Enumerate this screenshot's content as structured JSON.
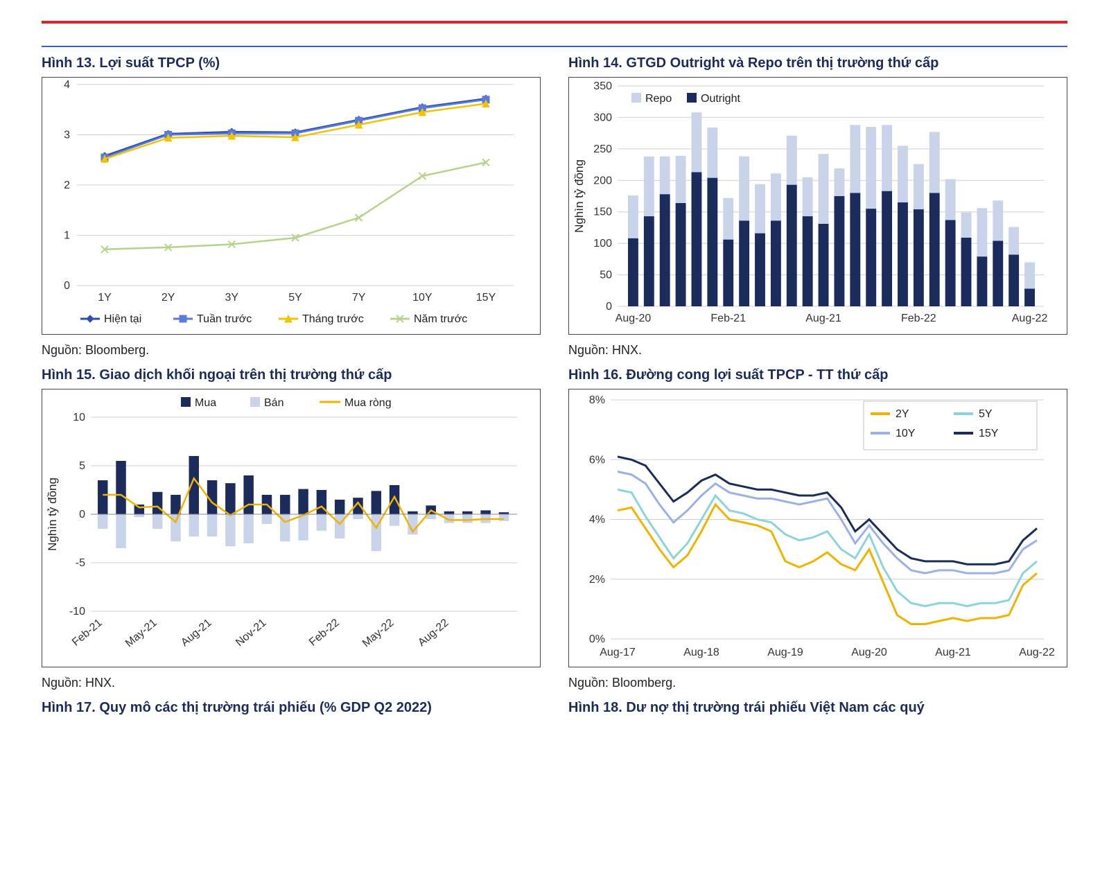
{
  "top_rules": {
    "red": "#d9252d",
    "blue": "#3a5fcc"
  },
  "fig13": {
    "title": "Hình 13. Lợi suất TPCP (%)",
    "source": "Nguồn: Bloomberg.",
    "type": "line",
    "categories": [
      "1Y",
      "2Y",
      "3Y",
      "5Y",
      "7Y",
      "10Y",
      "15Y"
    ],
    "series": [
      {
        "name": "Hiện tại",
        "color": "#2a4fb0",
        "marker": "diamond",
        "width": 2.5,
        "values": [
          2.58,
          3.02,
          3.06,
          3.05,
          3.3,
          3.55,
          3.72
        ]
      },
      {
        "name": "Tuần trước",
        "color": "#5a7bdc",
        "marker": "square",
        "width": 2.5,
        "values": [
          2.55,
          3.0,
          3.03,
          3.03,
          3.28,
          3.53,
          3.7
        ]
      },
      {
        "name": "Tháng trước",
        "color": "#f2c400",
        "marker": "triangle",
        "width": 2.5,
        "values": [
          2.52,
          2.94,
          2.98,
          2.95,
          3.2,
          3.45,
          3.62
        ]
      },
      {
        "name": "Năm trước",
        "color": "#b5d48a",
        "marker": "x",
        "width": 2.5,
        "values": [
          0.72,
          0.76,
          0.82,
          0.95,
          1.35,
          2.18,
          2.45
        ]
      }
    ],
    "ylim": [
      0,
      4
    ],
    "yticks": [
      0,
      1,
      2,
      3,
      4
    ],
    "grid_color": "#d0d0d0",
    "bg": "#ffffff",
    "label_fontsize": 16
  },
  "fig14": {
    "title": "Hình 14. GTGD Outright và Repo trên thị trường thứ cấp",
    "source": "Nguồn: HNX.",
    "type": "stacked-bar",
    "ylabel": "Nghìn tỷ đồng",
    "x_ticks": [
      "Aug-20",
      "Feb-21",
      "Aug-21",
      "Feb-22",
      "Aug-22"
    ],
    "series_colors": {
      "outright": "#1a2b5c",
      "repo": "#c9d4ea"
    },
    "legend": [
      "Repo",
      "Outright"
    ],
    "periods": [
      {
        "o": 108,
        "r": 68
      },
      {
        "o": 143,
        "r": 95
      },
      {
        "o": 178,
        "r": 60
      },
      {
        "o": 164,
        "r": 75
      },
      {
        "o": 213,
        "r": 95
      },
      {
        "o": 204,
        "r": 80
      },
      {
        "o": 106,
        "r": 66
      },
      {
        "o": 136,
        "r": 102
      },
      {
        "o": 116,
        "r": 78
      },
      {
        "o": 136,
        "r": 75
      },
      {
        "o": 193,
        "r": 78
      },
      {
        "o": 143,
        "r": 62
      },
      {
        "o": 131,
        "r": 111
      },
      {
        "o": 175,
        "r": 44
      },
      {
        "o": 180,
        "r": 108
      },
      {
        "o": 155,
        "r": 130
      },
      {
        "o": 183,
        "r": 105
      },
      {
        "o": 165,
        "r": 90
      },
      {
        "o": 154,
        "r": 72
      },
      {
        "o": 180,
        "r": 97
      },
      {
        "o": 137,
        "r": 65
      },
      {
        "o": 109,
        "r": 40
      },
      {
        "o": 79,
        "r": 77
      },
      {
        "o": 104,
        "r": 64
      },
      {
        "o": 82,
        "r": 44
      },
      {
        "o": 28,
        "r": 42
      }
    ],
    "ylim": [
      0,
      350
    ],
    "yticks": [
      0,
      50,
      100,
      150,
      200,
      250,
      300,
      350
    ],
    "bg": "#ffffff",
    "grid_color": "#d8d8d8"
  },
  "fig15": {
    "title": "Hình 15. Giao dịch khối ngoại trên thị trường thứ cấp",
    "source": "Nguồn: HNX.",
    "type": "bar+line",
    "ylabel": "Nghìn tỷ đồng",
    "x_ticks": [
      "Feb-21",
      "May-21",
      "Aug-21",
      "Nov-21",
      "Feb-22",
      "May-22",
      "Aug-22"
    ],
    "colors": {
      "mua": "#1a2b5c",
      "ban": "#c9d4ea",
      "net": "#f2b200"
    },
    "legend": [
      "Mua",
      "Bán",
      "Mua ròng"
    ],
    "periods": [
      {
        "m": 3.5,
        "b": -1.5
      },
      {
        "m": 5.5,
        "b": -3.5
      },
      {
        "m": 1.0,
        "b": -0.3
      },
      {
        "m": 2.3,
        "b": -1.5
      },
      {
        "m": 2.0,
        "b": -2.8
      },
      {
        "m": 6.0,
        "b": -2.3
      },
      {
        "m": 3.5,
        "b": -2.3
      },
      {
        "m": 3.2,
        "b": -3.3
      },
      {
        "m": 4.0,
        "b": -3.0
      },
      {
        "m": 2.0,
        "b": -1.0
      },
      {
        "m": 2.0,
        "b": -2.8
      },
      {
        "m": 2.6,
        "b": -2.7
      },
      {
        "m": 2.5,
        "b": -1.7
      },
      {
        "m": 1.5,
        "b": -2.5
      },
      {
        "m": 1.7,
        "b": -0.5
      },
      {
        "m": 2.4,
        "b": -3.8
      },
      {
        "m": 3.0,
        "b": -1.2
      },
      {
        "m": 0.3,
        "b": -2.1
      },
      {
        "m": 0.9,
        "b": -0.5
      },
      {
        "m": 0.3,
        "b": -0.9
      },
      {
        "m": 0.3,
        "b": -0.9
      },
      {
        "m": 0.4,
        "b": -0.9
      },
      {
        "m": 0.2,
        "b": -0.7
      }
    ],
    "ylim": [
      -10,
      10
    ],
    "yticks": [
      -10,
      -5,
      0,
      5,
      10
    ],
    "bg": "#ffffff",
    "grid_color": "#d8d8d8",
    "line_width": 2.5
  },
  "fig16": {
    "title": "Hình 16. Đường cong lợi suất TPCP - TT thứ cấp",
    "source": "Nguồn: Bloomberg.",
    "type": "line",
    "x_ticks": [
      "Aug-17",
      "Aug-18",
      "Aug-19",
      "Aug-20",
      "Aug-21",
      "Aug-22"
    ],
    "legend_labels": [
      "2Y",
      "5Y",
      "10Y",
      "15Y"
    ],
    "series": [
      {
        "name": "2Y",
        "color": "#f2b200",
        "width": 3,
        "values": [
          4.3,
          4.4,
          3.7,
          3.0,
          2.4,
          2.8,
          3.6,
          4.5,
          4.0,
          3.9,
          3.8,
          3.6,
          2.6,
          2.4,
          2.6,
          2.9,
          2.5,
          2.3,
          3.0,
          1.9,
          0.8,
          0.5,
          0.5,
          0.6,
          0.7,
          0.6,
          0.7,
          0.7,
          0.8,
          1.8,
          2.2
        ]
      },
      {
        "name": "5Y",
        "color": "#8dd4d8",
        "width": 3,
        "values": [
          5.0,
          4.9,
          4.1,
          3.4,
          2.7,
          3.2,
          4.0,
          4.8,
          4.3,
          4.2,
          4.0,
          3.9,
          3.5,
          3.3,
          3.4,
          3.6,
          3.0,
          2.7,
          3.5,
          2.4,
          1.6,
          1.2,
          1.1,
          1.2,
          1.2,
          1.1,
          1.2,
          1.2,
          1.3,
          2.2,
          2.6
        ]
      },
      {
        "name": "10Y",
        "color": "#9bb0e6",
        "width": 3,
        "values": [
          5.6,
          5.5,
          5.2,
          4.5,
          3.9,
          4.3,
          4.8,
          5.2,
          4.9,
          4.8,
          4.7,
          4.7,
          4.6,
          4.5,
          4.6,
          4.7,
          4.0,
          3.2,
          3.8,
          3.2,
          2.7,
          2.3,
          2.2,
          2.3,
          2.3,
          2.2,
          2.2,
          2.2,
          2.3,
          3.0,
          3.3
        ]
      },
      {
        "name": "15Y",
        "color": "#1a2b5c",
        "width": 3,
        "values": [
          6.1,
          6.0,
          5.8,
          5.2,
          4.6,
          4.9,
          5.3,
          5.5,
          5.2,
          5.1,
          5.0,
          5.0,
          4.9,
          4.8,
          4.8,
          4.9,
          4.4,
          3.6,
          4.0,
          3.5,
          3.0,
          2.7,
          2.6,
          2.6,
          2.6,
          2.5,
          2.5,
          2.5,
          2.6,
          3.3,
          3.7
        ]
      }
    ],
    "ylim": [
      0,
      8
    ],
    "yticks": [
      0,
      2,
      4,
      6,
      8
    ],
    "bg": "#ffffff",
    "grid_color": "#dcdcdc"
  },
  "fig17": {
    "title": "Hình 17. Quy mô các thị trường trái phiếu (% GDP Q2 2022)"
  },
  "fig18": {
    "title": "Hình 18. Dư nợ thị trường trái phiếu Việt Nam các quý"
  }
}
